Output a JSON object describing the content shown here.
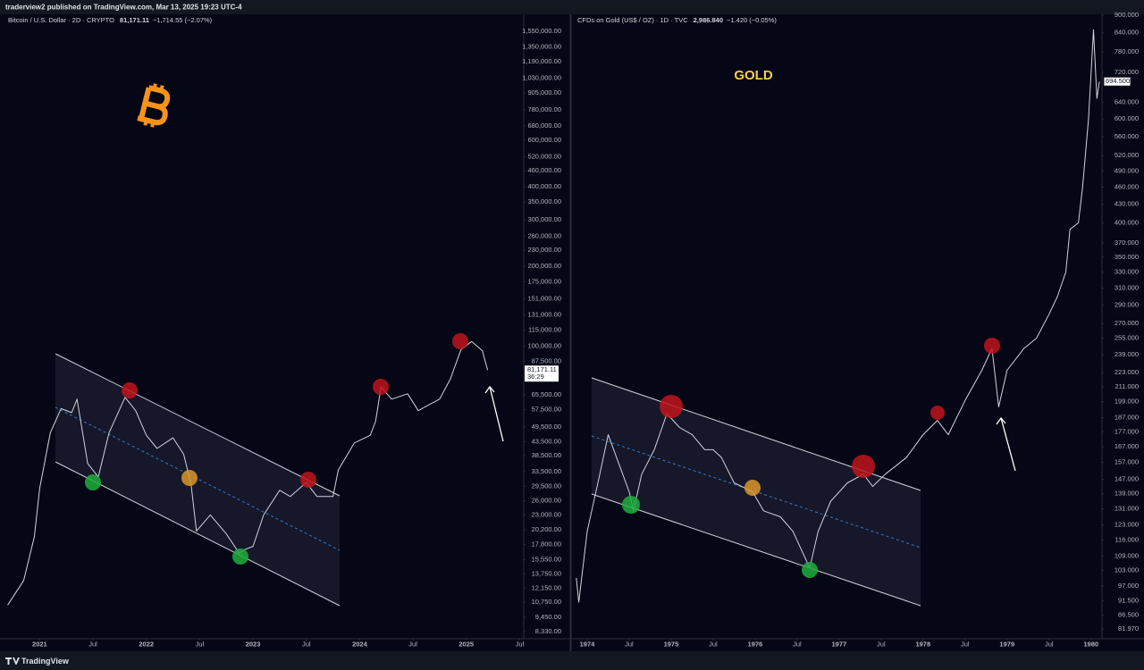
{
  "header": {
    "text": "traderview2 published on TradingView.com, Mar 13, 2025 19:23 UTC-4"
  },
  "footer": {
    "brand": "TradingView"
  },
  "chart_data": [
    {
      "type": "line",
      "log_scale": true,
      "grid": false,
      "title": {
        "name": "Bitcoin / U.S. Dollar · 2D · CRYPTO",
        "price": "81,171.11",
        "change": "−1,714.55 (−2.07%)"
      },
      "price_label": "81,171.11",
      "countdown": "36:29",
      "xlim": [
        2020.67,
        2025.53
      ],
      "xticks": [
        2021,
        {
          "value": 2021.5,
          "label": "Jul"
        },
        2022,
        {
          "value": 2022.5,
          "label": "Jul"
        },
        2023,
        {
          "value": 2023.5,
          "label": "Jul"
        },
        2024,
        {
          "value": 2024.5,
          "label": "Jul"
        },
        2025,
        {
          "value": 2025.5,
          "label": "Jul"
        }
      ],
      "ylim": [
        7830,
        1880000
      ],
      "yticks": [
        {
          "value": 1550000,
          "label": "1,550,000.00"
        },
        {
          "value": 1350000,
          "label": "1,350,000.00"
        },
        {
          "value": 1190000,
          "label": "1,190,000.00"
        },
        {
          "value": 1030000,
          "label": "1,030,000.00"
        },
        {
          "value": 905000,
          "label": "905,000.00"
        },
        {
          "value": 780000,
          "label": "780,000.00"
        },
        {
          "value": 680000,
          "label": "680,000.00"
        },
        {
          "value": 600000,
          "label": "600,000.00"
        },
        {
          "value": 520000,
          "label": "520,000.00"
        },
        {
          "value": 460000,
          "label": "460,000.00"
        },
        {
          "value": 400000,
          "label": "400,000.00"
        },
        {
          "value": 350000,
          "label": "350,000.00"
        },
        {
          "value": 300000,
          "label": "300,000.00"
        },
        {
          "value": 260000,
          "label": "260,000.00"
        },
        {
          "value": 230000,
          "label": "230,000.00"
        },
        {
          "value": 200000,
          "label": "200,000.00"
        },
        {
          "value": 175000,
          "label": "175,000.00"
        },
        {
          "value": 151000,
          "label": "151,000.00"
        },
        {
          "value": 131000,
          "label": "131,000.00"
        },
        {
          "value": 115000,
          "label": "115,000.00"
        },
        {
          "value": 100000,
          "label": "100,000.00"
        },
        {
          "value": 87500,
          "label": "87,500.00"
        },
        {
          "value": 65500,
          "label": "65,500.00"
        },
        {
          "value": 57500,
          "label": "57,500.00"
        },
        {
          "value": 49500,
          "label": "49,500.00"
        },
        {
          "value": 43500,
          "label": "43,500.00"
        },
        {
          "value": 38500,
          "label": "38,500.00"
        },
        {
          "value": 33500,
          "label": "33,500.00"
        },
        {
          "value": 29500,
          "label": "29,500.00"
        },
        {
          "value": 26000,
          "label": "26,000.00"
        },
        {
          "value": 23000,
          "label": "23,000.00"
        },
        {
          "value": 20200,
          "label": "20,200.00"
        },
        {
          "value": 17800,
          "label": "17,800.00"
        },
        {
          "value": 15550,
          "label": "15,550.00"
        },
        {
          "value": 13750,
          "label": "13,750.00"
        },
        {
          "value": 12150,
          "label": "12,150.00"
        },
        {
          "value": 10750,
          "label": "10,750.00"
        },
        {
          "value": 9450,
          "label": "9,450.00"
        },
        {
          "value": 8330,
          "label": "8,330.00"
        }
      ],
      "series": [
        {
          "name": "Bitcoin / U.S. Dollar",
          "color": "#d1d4dc",
          "x": [
            2020.7,
            2020.85,
            2020.95,
            2021.0,
            2021.1,
            2021.2,
            2021.3,
            2021.35,
            2021.45,
            2021.55,
            2021.65,
            2021.8,
            2021.9,
            2022.0,
            2022.1,
            2022.25,
            2022.35,
            2022.42,
            2022.47,
            2022.6,
            2022.75,
            2022.87,
            2022.92,
            2023.0,
            2023.1,
            2023.25,
            2023.35,
            2023.5,
            2023.6,
            2023.75,
            2023.8,
            2023.95,
            2024.1,
            2024.15,
            2024.2,
            2024.3,
            2024.45,
            2024.55,
            2024.65,
            2024.75,
            2024.85,
            2024.95,
            2025.05,
            2025.15,
            2025.2
          ],
          "values": [
            10500,
            13000,
            19000,
            29000,
            47000,
            58000,
            56000,
            63000,
            36000,
            32000,
            47000,
            64000,
            57000,
            46000,
            41000,
            45000,
            39000,
            30000,
            20000,
            23000,
            19500,
            16500,
            17000,
            17500,
            23000,
            28500,
            27000,
            30500,
            27000,
            27000,
            34000,
            43000,
            46000,
            52000,
            70000,
            63000,
            66000,
            57000,
            60000,
            63000,
            75000,
            97000,
            104000,
            96000,
            81171.11
          ]
        }
      ]
    },
    {
      "type": "line",
      "log_scale": true,
      "grid": false,
      "title": {
        "name": "CFDs on Gold (US$ / OZ) · 1D · TVC",
        "price": "2,986.840",
        "change": "−1.420 (−0.05%)"
      },
      "annotation": "GOLD",
      "price_label": "694.500",
      "xlim": [
        1973.83,
        1980.12
      ],
      "xticks": [
        1974,
        {
          "value": 1974.5,
          "label": "Jul"
        },
        1975,
        {
          "value": 1975.5,
          "label": "Jul"
        },
        1976,
        {
          "value": 1976.5,
          "label": "Jul"
        },
        1977,
        {
          "value": 1977.5,
          "label": "Jul"
        },
        1978,
        {
          "value": 1978.5,
          "label": "Jul"
        },
        1979,
        {
          "value": 1979.5,
          "label": "Jul"
        },
        1980
      ],
      "ylim": [
        78.9,
        922
      ],
      "yticks": [
        {
          "value": 900,
          "label": "900.000"
        },
        {
          "value": 840,
          "label": "840.000"
        },
        {
          "value": 780,
          "label": "780.000"
        },
        {
          "value": 720,
          "label": "720.000"
        },
        {
          "value": 640,
          "label": "640.000"
        },
        {
          "value": 600,
          "label": "600.000"
        },
        {
          "value": 560,
          "label": "560.000"
        },
        {
          "value": 520,
          "label": "520.000"
        },
        {
          "value": 490,
          "label": "490.000"
        },
        {
          "value": 460,
          "label": "460.000"
        },
        {
          "value": 430,
          "label": "430.000"
        },
        {
          "value": 400,
          "label": "400.000"
        },
        {
          "value": 370,
          "label": "370.000"
        },
        {
          "value": 350,
          "label": "350.000"
        },
        {
          "value": 330,
          "label": "330.000"
        },
        {
          "value": 310,
          "label": "310.000"
        },
        {
          "value": 290,
          "label": "290.000"
        },
        {
          "value": 270,
          "label": "270.000"
        },
        {
          "value": 255,
          "label": "255.000"
        },
        {
          "value": 239,
          "label": "239.000"
        },
        {
          "value": 223,
          "label": "223.000"
        },
        {
          "value": 211,
          "label": "211.000"
        },
        {
          "value": 199,
          "label": "199.000"
        },
        {
          "value": 187,
          "label": "187.000"
        },
        {
          "value": 177,
          "label": "177.000"
        },
        {
          "value": 167,
          "label": "167.000"
        },
        {
          "value": 157,
          "label": "157.000"
        },
        {
          "value": 147,
          "label": "147.000"
        },
        {
          "value": 139,
          "label": "139.000"
        },
        {
          "value": 131,
          "label": "131.000"
        },
        {
          "value": 123,
          "label": "123.000"
        },
        {
          "value": 116,
          "label": "116.000"
        },
        {
          "value": 109,
          "label": "109.000"
        },
        {
          "value": 103,
          "label": "103.000"
        },
        {
          "value": 97,
          "label": "97.000"
        },
        {
          "value": 91.5,
          "label": "91.500"
        },
        {
          "value": 86.5,
          "label": "86.500"
        },
        {
          "value": 81.97,
          "label": "81.970"
        }
      ],
      "series": [
        {
          "name": "CFDs on Gold",
          "color": "#d1d4dc",
          "x": [
            1973.87,
            1973.9,
            1974.0,
            1974.15,
            1974.25,
            1974.35,
            1974.5,
            1974.55,
            1974.65,
            1974.8,
            1974.95,
            1975.1,
            1975.25,
            1975.4,
            1975.5,
            1975.6,
            1975.75,
            1975.97,
            1976.1,
            1976.3,
            1976.45,
            1976.65,
            1976.75,
            1976.9,
            1977.1,
            1977.29,
            1977.4,
            1977.55,
            1977.8,
            1978.0,
            1978.17,
            1978.3,
            1978.5,
            1978.7,
            1978.82,
            1978.9,
            1979.0,
            1979.2,
            1979.35,
            1979.5,
            1979.6,
            1979.7,
            1979.75,
            1979.85,
            1979.9,
            1979.97,
            1980.03,
            1980.07,
            1980.1
          ],
          "values": [
            100,
            91,
            120,
            150,
            175,
            160,
            140,
            130,
            150,
            165,
            190,
            180,
            175,
            165,
            165,
            160,
            145,
            140,
            130,
            127,
            120,
            104,
            120,
            135,
            145,
            150,
            143,
            150,
            160,
            175,
            185,
            175,
            200,
            225,
            245,
            195,
            225,
            245,
            255,
            280,
            300,
            330,
            390,
            400,
            460,
            600,
            850,
            650,
            694.5
          ]
        }
      ]
    }
  ]
}
